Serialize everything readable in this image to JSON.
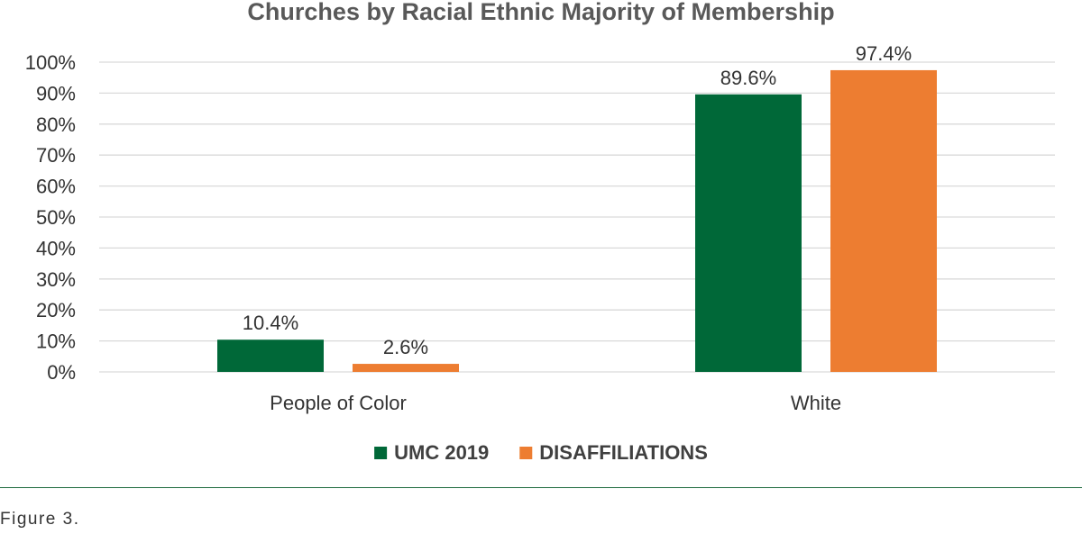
{
  "chart_data": {
    "type": "bar",
    "title": "Churches by Racial Ethnic Majority of Membership",
    "categories": [
      "People of Color",
      "White"
    ],
    "series": [
      {
        "name": "UMC 2019",
        "color": "#006838",
        "values": [
          10.4,
          89.6
        ],
        "labels": [
          "10.4%",
          "89.6%"
        ]
      },
      {
        "name": "DISAFFILIATIONS",
        "color": "#ED7D31",
        "values": [
          2.6,
          97.4
        ],
        "labels": [
          "2.6%",
          "97.4%"
        ]
      }
    ],
    "ylim": [
      0,
      100
    ],
    "yticks": [
      "0%",
      "10%",
      "20%",
      "30%",
      "40%",
      "50%",
      "60%",
      "70%",
      "80%",
      "90%",
      "100%"
    ],
    "grid": true,
    "legend_position": "bottom",
    "xlabel": "",
    "ylabel": ""
  },
  "figure": {
    "caption": "Figure 3."
  }
}
